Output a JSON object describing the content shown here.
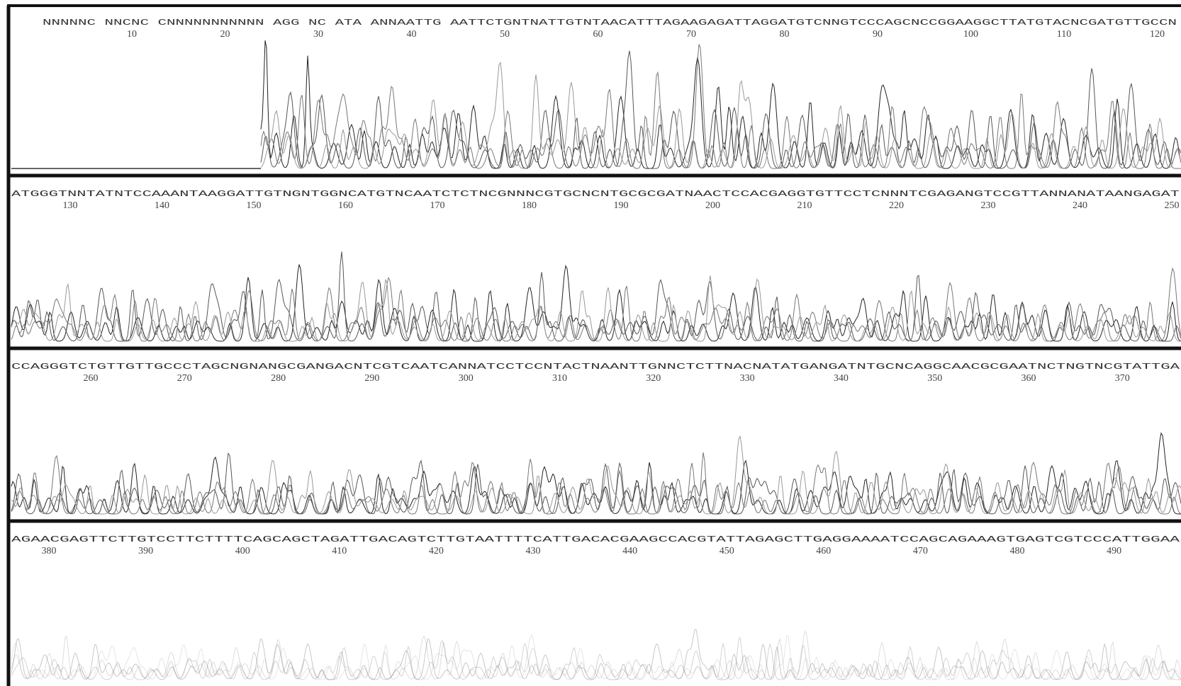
{
  "panels": [
    {
      "sequence": "NNNNNC NNCNC CNNNNNNNNNNN AGG NC ATA ANNAATTG AATTCTGNTNATTGTNTAACATTTAGAAGAGATTAGGATGTCNNGTCCCAGCNCCGGAAGGCTTATGTACNCGATGTTGCCN",
      "positions": [
        10,
        20,
        30,
        40,
        50,
        60,
        70,
        80,
        90,
        100,
        110,
        120
      ]
    },
    {
      "sequence": "ATGGGTNNTATNTCCAAANTAAGGATTGTNGNTGGNCATGTNCAATCTCTNCGNNNCGTGCNCNTGCGCGATNAACTCCACGAGGTGTTCCTCNNNTCGAGANGTCCGTTANNANATAANGAGAT",
      "positions": [
        130,
        140,
        150,
        160,
        170,
        180,
        190,
        200,
        210,
        220,
        230,
        240,
        250
      ]
    },
    {
      "sequence": "CCAGGGTCTGTTGTTGCCCTAGCNGNANGCGANGACNTCGTCAATCANNATCCTCCNTACTNAANTTGNNCTCTTNACNATATGANGATNTGCNCAGGCAACGCGAATNCTNGTNCGTATTGA",
      "positions": [
        260,
        270,
        280,
        290,
        300,
        310,
        320,
        330,
        340,
        350,
        360,
        370
      ]
    },
    {
      "sequence": "AGAACGAGTTCTTGTCCTTCTTTTCAGCAGCTAGATTGACAGTCTTGTAATTTTCATTGACACGAAGCCACGTATTAGAGCTTGAGGAAAATCCAGCAGAAAGTGAGTCGTCCCATTGGAA",
      "positions": [
        380,
        390,
        400,
        410,
        420,
        430,
        440,
        450,
        460,
        470,
        480,
        490
      ]
    }
  ]
}
